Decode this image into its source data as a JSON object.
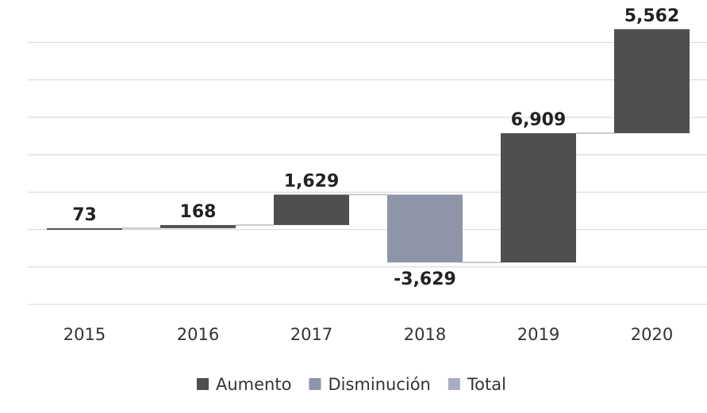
{
  "chart_data": {
    "type": "waterfall",
    "categories": [
      "2015",
      "2016",
      "2017",
      "2018",
      "2019",
      "2020"
    ],
    "values": [
      73,
      168,
      1629,
      -3629,
      6909,
      5562
    ],
    "value_labels": [
      "73",
      "168",
      "1,629",
      "-3,629",
      "6,909",
      "5,562"
    ],
    "legend": [
      {
        "name": "Aumento",
        "color": "#4f4f4f"
      },
      {
        "name": "Disminución",
        "color": "#8e95a8"
      },
      {
        "name": "Total",
        "color": "#a7adc2"
      }
    ],
    "ylim": [
      -4000,
      11000
    ],
    "yticks": [
      -4000,
      -2000,
      0,
      2000,
      4000,
      6000,
      8000,
      10000
    ],
    "grid": true
  }
}
